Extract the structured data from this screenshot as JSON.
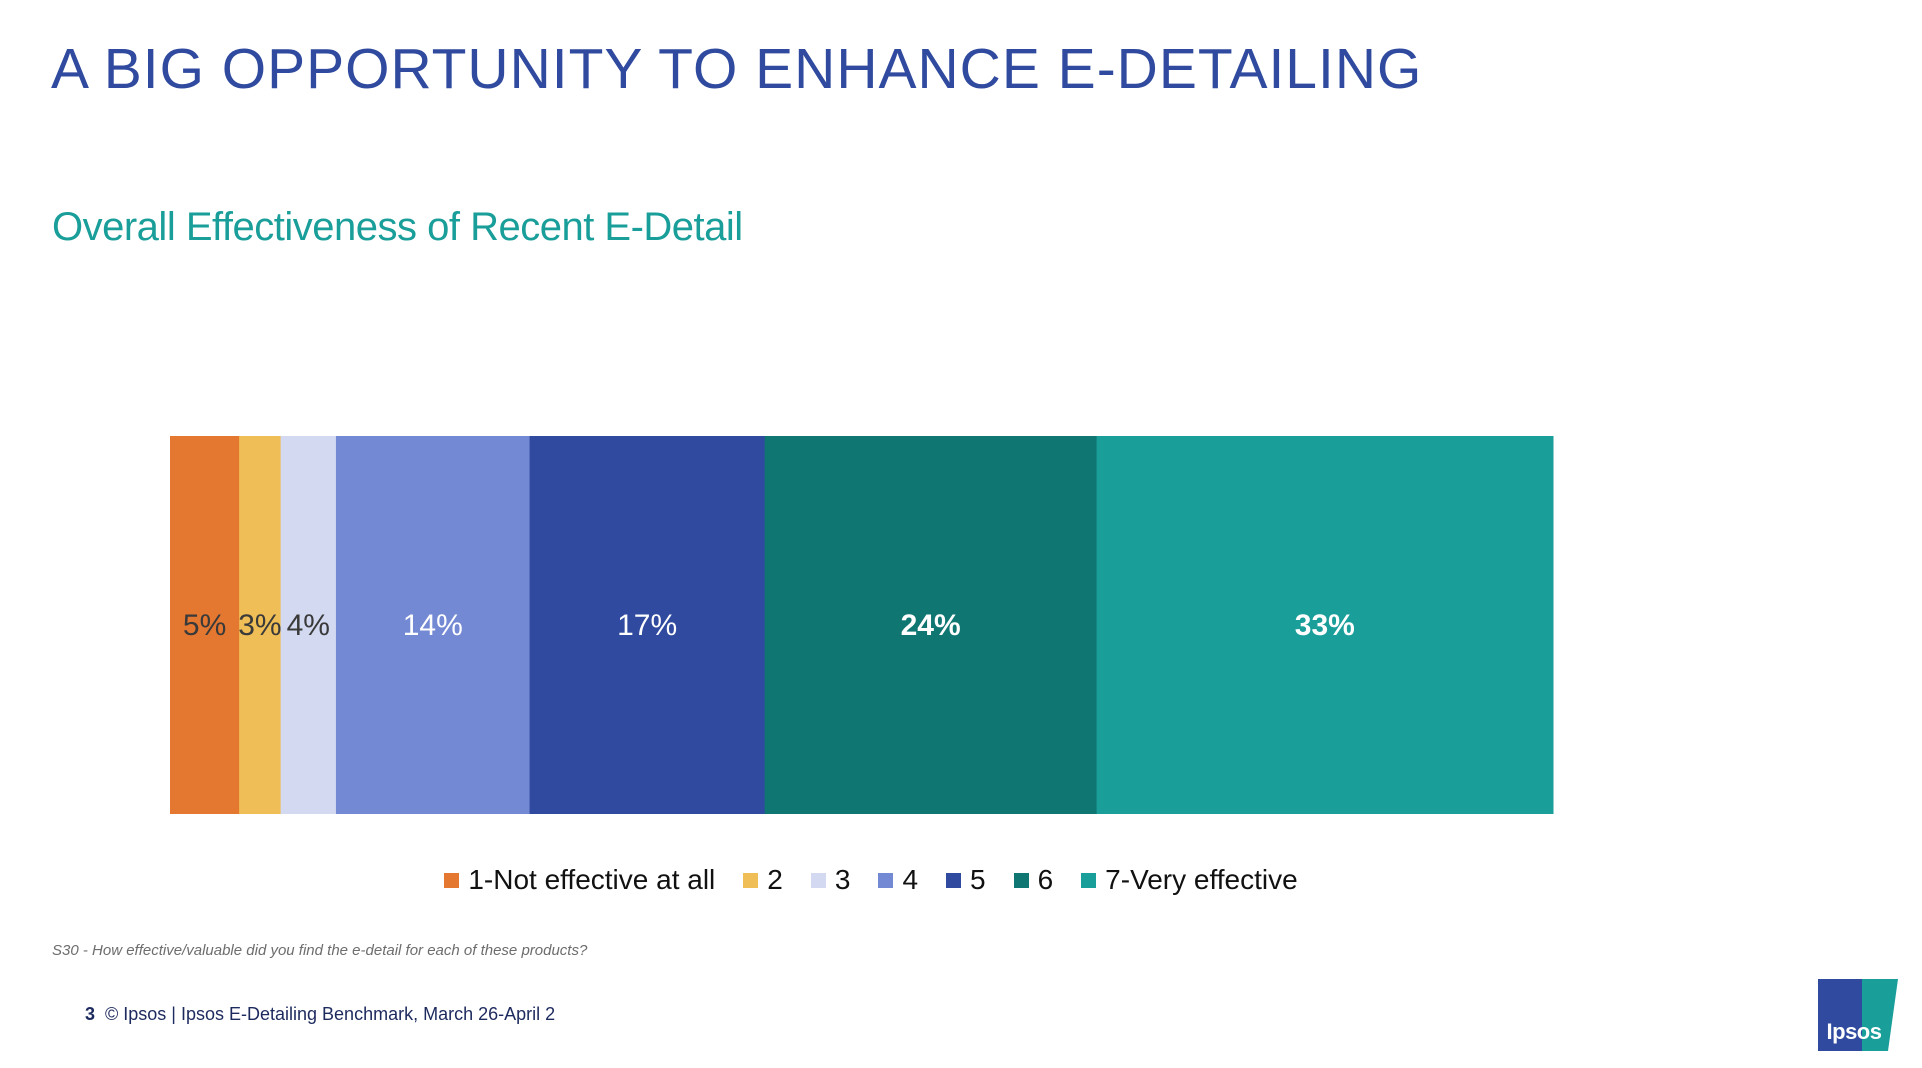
{
  "slide": {
    "title": "A BIG OPPORTUNITY TO ENHANCE E-DETAILING",
    "question_note": "S30 - How effective/valuable did you find the e-detail for each of these products?",
    "footer": {
      "page_number": "3",
      "text": "© Ipsos | Ipsos E-Detailing Benchmark, March 26-April 2"
    },
    "logo": {
      "text": "Ipsos",
      "colors": {
        "blue": "#2f4a9e",
        "teal": "#1a9e9a"
      }
    }
  },
  "chart_data": {
    "type": "bar",
    "orientation": "horizontal",
    "stacked": true,
    "title": "Overall Effectiveness of Recent E-Detail",
    "xlabel": "",
    "ylabel": "",
    "grid": false,
    "legend_position": "bottom",
    "categories": [
      ""
    ],
    "series": [
      {
        "name": "1-Not effective at all",
        "values": [
          5
        ],
        "label": "5%",
        "color": "#e57831",
        "label_color": "#3a3a3a",
        "label_bold": false
      },
      {
        "name": "2",
        "values": [
          3
        ],
        "label": "3%",
        "color": "#f0be56",
        "label_color": "#3a3a3a",
        "label_bold": false
      },
      {
        "name": "3",
        "values": [
          4
        ],
        "label": "4%",
        "color": "#d2d9f0",
        "label_color": "#3a3a3a",
        "label_bold": false
      },
      {
        "name": "4",
        "values": [
          14
        ],
        "label": "14%",
        "color": "#7489d4",
        "label_color": "#ffffff",
        "label_bold": false
      },
      {
        "name": "5",
        "values": [
          17
        ],
        "label": "17%",
        "color": "#2f4a9e",
        "label_color": "#ffffff",
        "label_bold": false
      },
      {
        "name": "6",
        "values": [
          24
        ],
        "label": "24%",
        "color": "#107672",
        "label_color": "#ffffff",
        "label_bold": true
      },
      {
        "name": "7-Very effective",
        "values": [
          33
        ],
        "label": "33%",
        "color": "#1a9e9a",
        "label_color": "#ffffff",
        "label_bold": true
      }
    ]
  }
}
